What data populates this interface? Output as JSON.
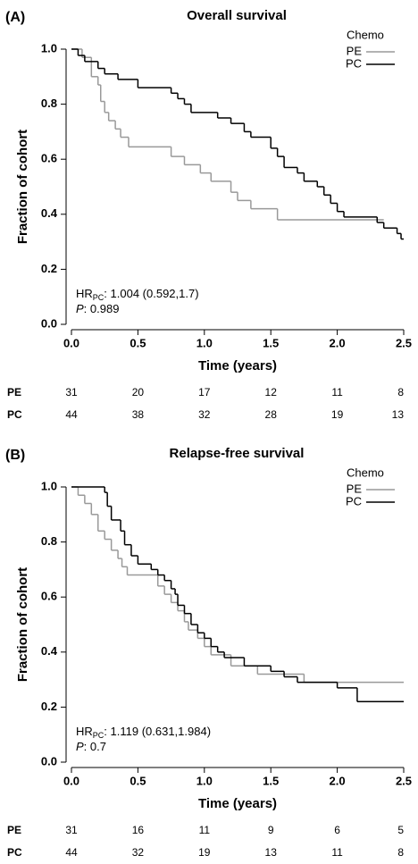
{
  "chart_data": [
    {
      "type": "step",
      "panel": "(A)",
      "title": "Overall survival",
      "xlabel": "Time (years)",
      "ylabel": "Fraction of cohort",
      "xlim": [
        0,
        2.5
      ],
      "ylim": [
        0,
        1.0
      ],
      "xticks": [
        {
          "value": 0,
          "label": "0.0"
        },
        0.5,
        {
          "value": 1,
          "label": "1.0"
        },
        1.5,
        {
          "value": 2,
          "label": "2.0"
        },
        2.5
      ],
      "yticks": [
        {
          "value": 0,
          "label": "0.0"
        },
        0.2,
        0.4,
        0.6,
        0.8,
        {
          "value": 1,
          "label": "1.0"
        }
      ],
      "legend_title": "Chemo",
      "series": [
        {
          "name": "PE",
          "color": "#999999",
          "x": [
            0,
            0.08,
            0.15,
            0.2,
            0.22,
            0.25,
            0.28,
            0.33,
            0.37,
            0.43,
            0.75,
            0.85,
            0.97,
            1.05,
            1.2,
            1.25,
            1.35,
            1.55,
            2.35
          ],
          "values": [
            1.0,
            0.97,
            0.9,
            0.87,
            0.81,
            0.77,
            0.74,
            0.71,
            0.68,
            0.645,
            0.61,
            0.58,
            0.55,
            0.52,
            0.48,
            0.45,
            0.42,
            0.38,
            0.38
          ]
        },
        {
          "name": "PC",
          "color": "#000000",
          "x": [
            0,
            0.05,
            0.1,
            0.2,
            0.25,
            0.35,
            0.5,
            0.75,
            0.8,
            0.85,
            0.9,
            1.1,
            1.2,
            1.3,
            1.35,
            1.5,
            1.55,
            1.6,
            1.7,
            1.75,
            1.85,
            1.9,
            1.95,
            2.0,
            2.05,
            2.3,
            2.35,
            2.45,
            2.48,
            2.5
          ],
          "values": [
            1.0,
            0.977,
            0.955,
            0.93,
            0.91,
            0.89,
            0.86,
            0.84,
            0.82,
            0.8,
            0.77,
            0.75,
            0.73,
            0.7,
            0.68,
            0.64,
            0.61,
            0.57,
            0.55,
            0.52,
            0.5,
            0.47,
            0.44,
            0.41,
            0.39,
            0.37,
            0.35,
            0.33,
            0.31,
            0.31
          ]
        }
      ],
      "hr_label": "HR",
      "hr_sub": "PC",
      "hr_text": ": 1.004 (0.592,1.7)",
      "p_label": "P",
      "p_text": ": 0.989",
      "risk_table": [
        {
          "name": "PE",
          "values": [
            31,
            20,
            17,
            12,
            11,
            8
          ]
        },
        {
          "name": "PC",
          "values": [
            44,
            38,
            32,
            28,
            19,
            13
          ]
        }
      ]
    },
    {
      "type": "step",
      "panel": "(B)",
      "title": "Relapse-free survival",
      "xlabel": "Time (years)",
      "ylabel": "Fraction of cohort",
      "xlim": [
        0,
        2.5
      ],
      "ylim": [
        0,
        1.0
      ],
      "xticks": [
        {
          "value": 0,
          "label": "0.0"
        },
        0.5,
        {
          "value": 1,
          "label": "1.0"
        },
        1.5,
        {
          "value": 2,
          "label": "2.0"
        },
        2.5
      ],
      "yticks": [
        {
          "value": 0,
          "label": "0.0"
        },
        0.2,
        0.4,
        0.6,
        0.8,
        {
          "value": 1,
          "label": "1.0"
        }
      ],
      "legend_title": "Chemo",
      "series": [
        {
          "name": "PE",
          "color": "#999999",
          "x": [
            0,
            0.05,
            0.1,
            0.15,
            0.2,
            0.25,
            0.3,
            0.35,
            0.38,
            0.42,
            0.65,
            0.7,
            0.75,
            0.8,
            0.85,
            0.88,
            0.95,
            1.0,
            1.05,
            1.2,
            1.4,
            1.75,
            2.5
          ],
          "values": [
            1.0,
            0.97,
            0.94,
            0.9,
            0.84,
            0.81,
            0.77,
            0.74,
            0.71,
            0.68,
            0.64,
            0.61,
            0.58,
            0.55,
            0.51,
            0.48,
            0.45,
            0.42,
            0.39,
            0.35,
            0.32,
            0.29,
            0.29
          ]
        },
        {
          "name": "PC",
          "color": "#000000",
          "x": [
            0,
            0.25,
            0.27,
            0.3,
            0.37,
            0.4,
            0.45,
            0.5,
            0.6,
            0.65,
            0.7,
            0.75,
            0.78,
            0.8,
            0.85,
            0.9,
            0.95,
            1.0,
            1.05,
            1.1,
            1.15,
            1.3,
            1.5,
            1.6,
            1.7,
            2.0,
            2.15,
            2.5
          ],
          "values": [
            1.0,
            0.98,
            0.93,
            0.88,
            0.84,
            0.79,
            0.75,
            0.72,
            0.7,
            0.68,
            0.66,
            0.63,
            0.61,
            0.57,
            0.54,
            0.5,
            0.47,
            0.45,
            0.42,
            0.4,
            0.38,
            0.35,
            0.33,
            0.31,
            0.29,
            0.27,
            0.22,
            0.22
          ]
        }
      ],
      "hr_label": "HR",
      "hr_sub": "PC",
      "hr_text": ": 1.119 (0.631,1.984)",
      "p_label": "P",
      "p_text": ": 0.7",
      "risk_table": [
        {
          "name": "PE",
          "values": [
            31,
            16,
            11,
            9,
            6,
            5
          ]
        },
        {
          "name": "PC",
          "values": [
            44,
            32,
            19,
            13,
            11,
            8
          ]
        }
      ]
    }
  ]
}
